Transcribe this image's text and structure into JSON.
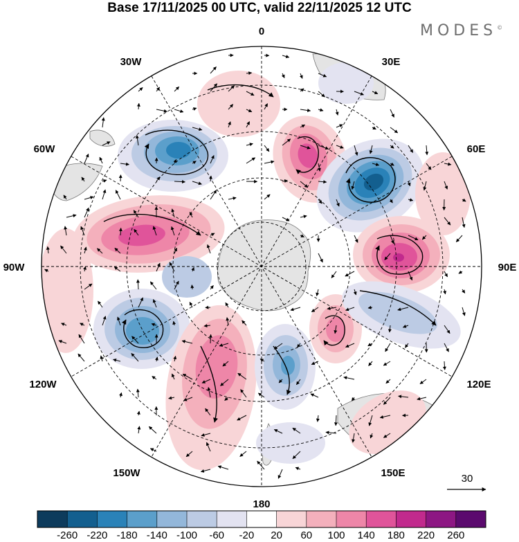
{
  "title": "Base 17/11/2025 00 UTC, valid 22/11/2025 12 UTC",
  "logo": "MODES",
  "logo_mark": "©",
  "meridian_labels": {
    "m0": "0",
    "m30e": "30E",
    "m60e": "60E",
    "m90e": "90E",
    "m120e": "120E",
    "m150e": "150E",
    "m180": "180",
    "m150w": "150W",
    "m120w": "120W",
    "m90w": "90W",
    "m60w": "60W",
    "m30w": "30W"
  },
  "vector_reference": {
    "label": "30"
  },
  "colorbar": {
    "labels": [
      "-260",
      "-220",
      "-180",
      "-140",
      "-100",
      "-60",
      "-20",
      "20",
      "60",
      "100",
      "140",
      "180",
      "220",
      "260"
    ],
    "colors": [
      "#0d3b5c",
      "#135f8f",
      "#2a82b8",
      "#5b9fcb",
      "#93b7da",
      "#bccbe4",
      "#e3e3f1",
      "#ffffff",
      "#f8d5d7",
      "#f4b0bc",
      "#ee86a8",
      "#e0549a",
      "#c12a8d",
      "#8d1783",
      "#5b0a6e"
    ]
  },
  "chart_data": {
    "type": "heatmap",
    "projection": "south polar stereographic",
    "title": "Base 17/11/2025 00 UTC, valid 22/11/2025 12 UTC",
    "field_range": [
      -260,
      260
    ],
    "contour_levels": [
      -260,
      -220,
      -180,
      -140,
      -100,
      -60,
      -20,
      20,
      60,
      100,
      140,
      180,
      220,
      260
    ],
    "anomaly_centers": [
      {
        "sign": "negative",
        "approx_lon": "35W",
        "approx_min": -200
      },
      {
        "sign": "positive",
        "approx_lon": "20E",
        "approx_max": 200
      },
      {
        "sign": "negative",
        "approx_lon": "45E",
        "approx_min": -260
      },
      {
        "sign": "positive",
        "approx_lon": "90E",
        "approx_max": 220
      },
      {
        "sign": "positive",
        "approx_lon": "80W",
        "approx_max": 180
      },
      {
        "sign": "negative",
        "approx_lon": "115W",
        "approx_min": -160
      },
      {
        "sign": "positive",
        "approx_lon": "150W",
        "approx_max": 140
      },
      {
        "sign": "negative",
        "approx_lon": "170E",
        "approx_min": -140
      },
      {
        "sign": "positive",
        "approx_lon": "140E",
        "approx_max": 100
      }
    ],
    "vector_reference_value": 30
  }
}
